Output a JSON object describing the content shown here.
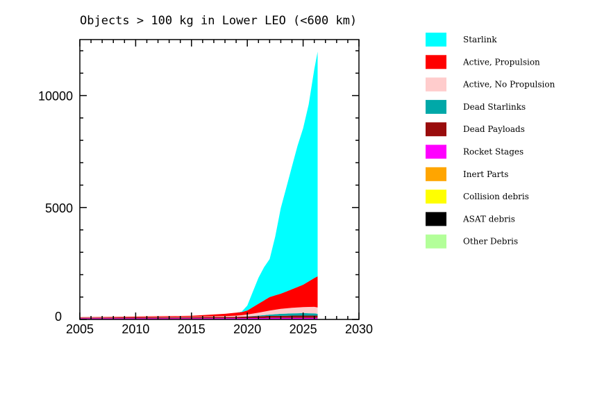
{
  "chart_data": {
    "type": "area",
    "stacked": true,
    "title": "Objects > 100 kg in Lower LEO (<600 km)",
    "xlabel": "",
    "ylabel": "",
    "xlim": [
      2005,
      2030
    ],
    "ylim": [
      0,
      12500
    ],
    "xticks": [
      2005,
      2010,
      2015,
      2020,
      2025,
      2030
    ],
    "xtick_labels": [
      "2005",
      "2010",
      "2015",
      "2020",
      "2025",
      "2030"
    ],
    "yticks": [
      0,
      5000,
      10000
    ],
    "ytick_labels": [
      "0",
      "5000",
      "10000"
    ],
    "grid": false,
    "legend_position": "right, outside",
    "x": [
      2005,
      2010,
      2015,
      2018,
      2019,
      2019.5,
      2020,
      2020.5,
      2021,
      2021.5,
      2022,
      2022.5,
      2023,
      2023.5,
      2024,
      2024.5,
      2025,
      2025.5,
      2026,
      2026.3
    ],
    "series": [
      {
        "name": "Other Debris",
        "color": "#b3ff99",
        "values": [
          2,
          2,
          2,
          2,
          2,
          2,
          2,
          2,
          2,
          2,
          2,
          2,
          2,
          2,
          2,
          2,
          2,
          2,
          2,
          2
        ]
      },
      {
        "name": "ASAT debris",
        "color": "#000000",
        "values": [
          0,
          0,
          0,
          0,
          0,
          0,
          0,
          0,
          0,
          0,
          2,
          2,
          2,
          2,
          2,
          2,
          2,
          2,
          2,
          2
        ]
      },
      {
        "name": "Collision debris",
        "color": "#ffff00",
        "values": [
          3,
          3,
          3,
          3,
          3,
          3,
          3,
          3,
          3,
          3,
          3,
          3,
          3,
          3,
          3,
          3,
          3,
          3,
          3,
          3
        ]
      },
      {
        "name": "Inert Parts",
        "color": "#ffa500",
        "values": [
          5,
          5,
          5,
          5,
          5,
          5,
          5,
          5,
          5,
          5,
          5,
          5,
          5,
          5,
          5,
          5,
          5,
          5,
          5,
          5
        ]
      },
      {
        "name": "Rocket Stages",
        "color": "#ff00ff",
        "values": [
          40,
          42,
          45,
          48,
          48,
          49,
          50,
          51,
          52,
          53,
          55,
          55,
          55,
          56,
          58,
          59,
          60,
          60,
          60,
          60
        ]
      },
      {
        "name": "Dead Payloads",
        "color": "#990c0c",
        "values": [
          30,
          40,
          50,
          55,
          60,
          65,
          70,
          75,
          80,
          85,
          90,
          92,
          95,
          97,
          100,
          100,
          100,
          100,
          100,
          100
        ]
      },
      {
        "name": "Dead Starlinks",
        "color": "#00a8a8",
        "values": [
          0,
          0,
          0,
          0,
          0,
          0,
          10,
          20,
          30,
          45,
          60,
          75,
          90,
          95,
          100,
          105,
          110,
          105,
          100,
          80
        ]
      },
      {
        "name": "Active, No Propulsion",
        "color": "#ffcccc",
        "values": [
          10,
          15,
          20,
          35,
          50,
          65,
          80,
          105,
          130,
          155,
          180,
          200,
          220,
          235,
          250,
          260,
          270,
          280,
          290,
          280
        ]
      },
      {
        "name": "Active, Propulsion",
        "color": "#ff0000",
        "values": [
          10,
          23,
          35,
          102,
          132,
          141,
          180,
          289,
          398,
          502,
          603,
          646,
          678,
          755,
          830,
          914,
          998,
          1143,
          1288,
          1393
        ]
      },
      {
        "name": "Starlink",
        "color": "#00ffff",
        "values": [
          0,
          0,
          0,
          0,
          0,
          20,
          220,
          690,
          1160,
          1480,
          1700,
          2620,
          3820,
          4650,
          5480,
          6310,
          6990,
          7900,
          9330,
          10035
        ]
      }
    ],
    "legend": [
      "Starlink",
      "Active, Propulsion",
      "Active, No Propulsion",
      "Dead Starlinks",
      "Dead Payloads",
      "Rocket Stages",
      "Inert Parts",
      "Collision debris",
      "ASAT debris",
      "Other Debris"
    ]
  }
}
